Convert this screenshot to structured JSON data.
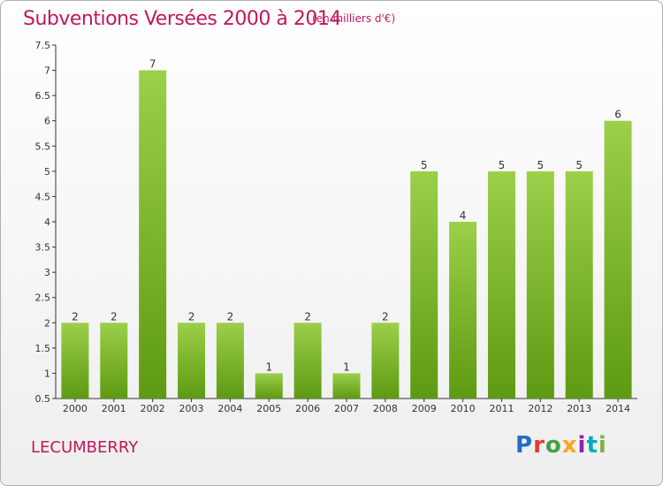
{
  "header": {
    "title": "Subventions Versées 2000 à 2014",
    "subtitle": "(en milliers d'€)"
  },
  "footer": {
    "location": "LECUMBERRY",
    "logo_text": "Proxiti",
    "logo_colors": [
      "#1f6fc2",
      "#e53935",
      "#43a047",
      "#f9a825",
      "#8e24aa",
      "#00acc1",
      "#7cb342"
    ]
  },
  "colors": {
    "bar_top": "#9ccf4a",
    "bar_bottom": "#5d9a12",
    "axis": "#333333",
    "grid": "#cfcfcf",
    "text_accent": "#c2185b"
  },
  "chart_data": {
    "type": "bar",
    "title": "Subventions Versées 2000 à 2014",
    "subtitle": "(en milliers d'€)",
    "xlabel": "",
    "ylabel": "",
    "categories": [
      "2000",
      "2001",
      "2002",
      "2003",
      "2004",
      "2005",
      "2006",
      "2007",
      "2008",
      "2009",
      "2010",
      "2011",
      "2012",
      "2013",
      "2014"
    ],
    "values": [
      2,
      2,
      7,
      2,
      2,
      1,
      2,
      1,
      2,
      5,
      4,
      5,
      5,
      5,
      6
    ],
    "data_labels": [
      "2",
      "2",
      "7",
      "2",
      "2",
      "1",
      "2",
      "1",
      "2",
      "5",
      "4",
      "5",
      "5",
      "5",
      "6"
    ],
    "ylim": [
      0.5,
      7.5
    ],
    "yticks": [
      0.5,
      1,
      1.5,
      2,
      2.5,
      3,
      3.5,
      4,
      4.5,
      5,
      5.5,
      6,
      6.5,
      7,
      7.5
    ],
    "ytick_labels": [
      "0.5",
      "1",
      "1.5",
      "2",
      "2.5",
      "3",
      "3.5",
      "4",
      "4.5",
      "5",
      "5.5",
      "6",
      "6.5",
      "7",
      "7.5"
    ],
    "grid": false,
    "legend": "none"
  }
}
